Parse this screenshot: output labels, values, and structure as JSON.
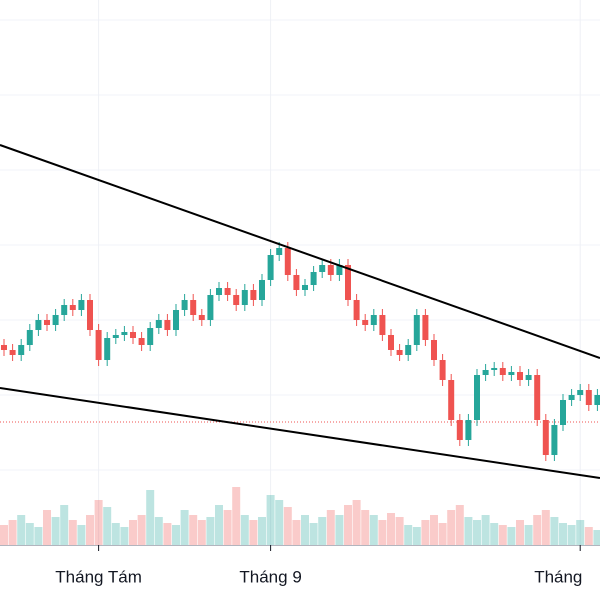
{
  "chart_data": {
    "type": "candlestick",
    "categories": [
      null,
      null,
      null,
      null,
      null,
      null,
      null,
      null,
      null,
      null,
      null,
      "Tháng Tám",
      null,
      null,
      null,
      null,
      null,
      null,
      null,
      null,
      null,
      null,
      null,
      null,
      null,
      null,
      null,
      null,
      null,
      null,
      null,
      "Tháng 9",
      null,
      null,
      null,
      null,
      null,
      null,
      null,
      null,
      null,
      null,
      null,
      null,
      null,
      null,
      null,
      null,
      null,
      null,
      null,
      null,
      null,
      null,
      null,
      null,
      null,
      null,
      null,
      null,
      null,
      null,
      null,
      null,
      null,
      null,
      null,
      "Tháng",
      null,
      null
    ],
    "open": [
      255,
      250,
      245,
      255,
      270,
      280,
      275,
      285,
      295,
      290,
      300,
      270,
      240,
      262,
      265,
      268,
      262,
      255,
      272,
      280,
      270,
      290,
      300,
      285,
      280,
      305,
      312,
      305,
      295,
      310,
      300,
      320,
      345,
      352,
      325,
      310,
      315,
      328,
      335,
      325,
      335,
      300,
      280,
      275,
      285,
      265,
      250,
      245,
      255,
      285,
      260,
      240,
      220,
      180,
      160,
      180,
      225,
      230,
      232,
      225,
      228,
      220,
      225,
      180,
      145,
      175,
      200,
      205,
      210,
      195
    ],
    "high": [
      261,
      256,
      261,
      276,
      286,
      286,
      291,
      301,
      301,
      306,
      306,
      276,
      268,
      271,
      274,
      274,
      268,
      278,
      286,
      286,
      296,
      306,
      306,
      291,
      311,
      318,
      318,
      311,
      316,
      316,
      326,
      351,
      358,
      358,
      331,
      321,
      334,
      341,
      341,
      341,
      341,
      306,
      286,
      291,
      291,
      271,
      256,
      261,
      291,
      291,
      266,
      246,
      226,
      186,
      186,
      231,
      236,
      238,
      238,
      234,
      234,
      231,
      231,
      186,
      181,
      206,
      211,
      216,
      216,
      211
    ],
    "low": [
      244,
      239,
      239,
      249,
      264,
      269,
      269,
      279,
      284,
      284,
      264,
      234,
      234,
      256,
      259,
      256,
      249,
      249,
      266,
      264,
      264,
      284,
      279,
      274,
      274,
      299,
      299,
      289,
      289,
      294,
      294,
      314,
      339,
      319,
      304,
      304,
      309,
      322,
      319,
      319,
      294,
      274,
      269,
      269,
      259,
      244,
      239,
      239,
      249,
      254,
      234,
      214,
      174,
      154,
      154,
      174,
      219,
      224,
      219,
      219,
      214,
      214,
      174,
      139,
      139,
      169,
      194,
      199,
      189,
      189
    ],
    "close": [
      250,
      245,
      255,
      270,
      280,
      275,
      285,
      295,
      290,
      300,
      270,
      240,
      262,
      265,
      268,
      262,
      255,
      272,
      280,
      270,
      290,
      300,
      285,
      280,
      305,
      312,
      305,
      295,
      310,
      300,
      320,
      345,
      352,
      325,
      310,
      315,
      328,
      335,
      325,
      335,
      300,
      280,
      275,
      285,
      265,
      250,
      245,
      255,
      285,
      260,
      240,
      220,
      180,
      160,
      180,
      225,
      230,
      232,
      225,
      228,
      220,
      225,
      180,
      145,
      175,
      200,
      205,
      210,
      195,
      205
    ],
    "volume": [
      20,
      25,
      30,
      22,
      18,
      35,
      28,
      40,
      25,
      20,
      30,
      45,
      38,
      22,
      18,
      25,
      30,
      55,
      28,
      22,
      20,
      35,
      30,
      25,
      28,
      40,
      35,
      58,
      30,
      25,
      28,
      50,
      45,
      38,
      25,
      30,
      22,
      28,
      35,
      30,
      40,
      45,
      35,
      30,
      25,
      32,
      28,
      20,
      18,
      25,
      30,
      22,
      35,
      40,
      28,
      25,
      30,
      22,
      20,
      18,
      25,
      20,
      30,
      35,
      28,
      22,
      20,
      25,
      18,
      15
    ],
    "ylim": [
      0,
      600
    ],
    "volume_ylim": [
      0,
      100
    ],
    "up_color": "#26a69a",
    "down_color": "#ef5350",
    "price_line": 178,
    "trendlines": [
      {
        "x": [
          -0.47,
          69.3
        ],
        "y": [
          455,
          242
        ]
      },
      {
        "x": [
          -0.47,
          69.3
        ],
        "y": [
          212,
          122
        ]
      }
    ]
  }
}
